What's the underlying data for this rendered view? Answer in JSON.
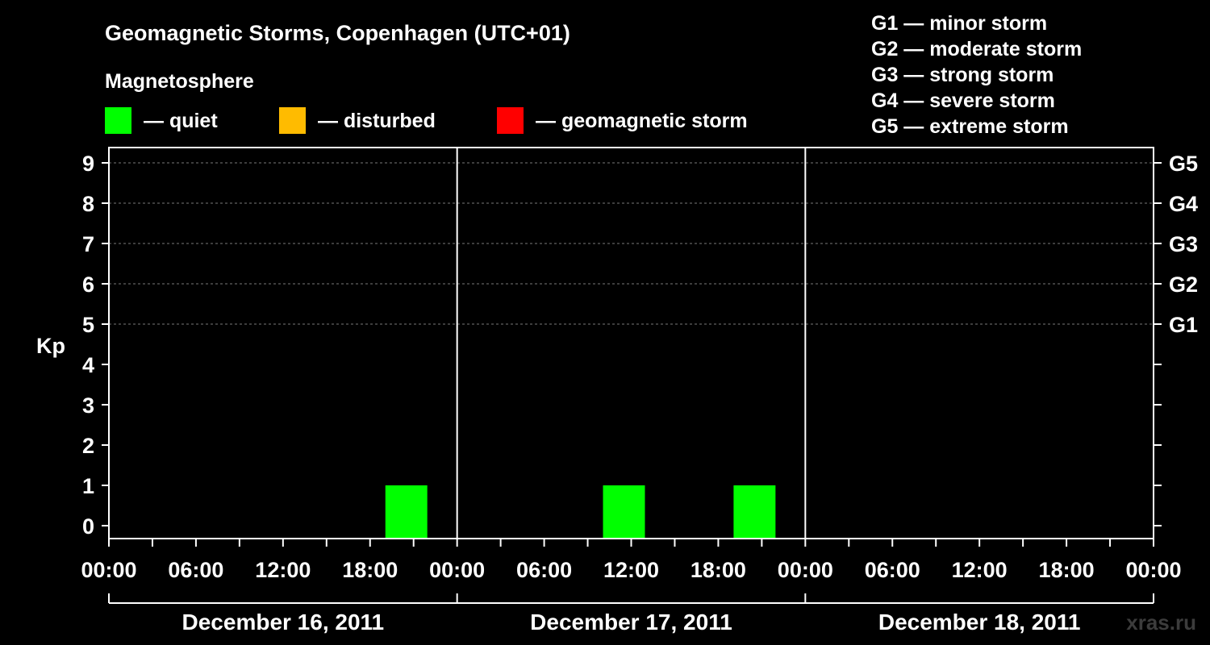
{
  "chart_data": {
    "type": "bar",
    "title": "Geomagnetic Storms, Copenhagen (UTC+01)",
    "subtitle": "Magnetosphere",
    "ylabel": "Kp",
    "ylim": [
      0,
      9
    ],
    "yticks": [
      "0",
      "1",
      "2",
      "3",
      "4",
      "5",
      "6",
      "7",
      "8",
      "9"
    ],
    "storm_levels": [
      {
        "label": "G1",
        "kp": 5
      },
      {
        "label": "G2",
        "kp": 6
      },
      {
        "label": "G3",
        "kp": 7
      },
      {
        "label": "G4",
        "kp": 8
      },
      {
        "label": "G5",
        "kp": 9
      }
    ],
    "storm_legend": [
      "G1 — minor storm",
      "G2 — moderate storm",
      "G3 — strong storm",
      "G4 — severe storm",
      "G5 — extreme storm"
    ],
    "status_legend": [
      {
        "label": "— quiet",
        "color": "#00ff00"
      },
      {
        "label": "— disturbed",
        "color": "#ffbb00"
      },
      {
        "label": "— geomagnetic storm",
        "color": "#ff0000"
      }
    ],
    "x_tick_labels": [
      "00:00",
      "06:00",
      "12:00",
      "18:00",
      "00:00",
      "06:00",
      "12:00",
      "18:00",
      "00:00",
      "06:00",
      "12:00",
      "18:00",
      "00:00"
    ],
    "days": [
      "December 16, 2011",
      "December 17, 2011",
      "December 18, 2011"
    ],
    "bars": [
      {
        "day": 0,
        "start_hour": 19,
        "end_hour": 22,
        "kp": 1,
        "status": "quiet"
      },
      {
        "day": 1,
        "start_hour": 10,
        "end_hour": 13,
        "kp": 1,
        "status": "quiet"
      },
      {
        "day": 1,
        "start_hour": 19,
        "end_hour": 22,
        "kp": 1,
        "status": "quiet"
      }
    ],
    "grid": "dashed horizontal at Kp 5–9"
  },
  "watermark": "xras.ru"
}
